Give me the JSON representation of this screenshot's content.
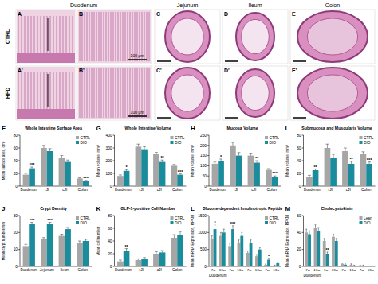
{
  "histology": {
    "columns": [
      "Duodenum",
      "Jejunum",
      "Ileum",
      "Colon"
    ],
    "rows": [
      "CTRL",
      "HFD"
    ],
    "panels": [
      [
        "A",
        "B",
        "C",
        "D",
        "E"
      ],
      [
        "A'",
        "B'",
        "C'",
        "D'",
        "E'"
      ]
    ],
    "scale_bar": "100 µm"
  },
  "chart_data": [
    {
      "type": "bar",
      "panel_label": "F",
      "title": "Whole Intestine Surface Area",
      "y_label": "Mean surface area, cm²",
      "categories": [
        "Duodenum",
        "rJI",
        "cJI",
        "Colon"
      ],
      "series": [
        {
          "name": "CTRL",
          "color": "#a6a6a6",
          "values": [
            18,
            60,
            45,
            12
          ],
          "errors": [
            2,
            4,
            3,
            1
          ]
        },
        {
          "name": "DIO",
          "color": "#1a8c9c",
          "values": [
            28,
            55,
            38,
            8
          ],
          "errors": [
            2,
            4,
            3,
            1
          ]
        }
      ],
      "significance": [
        "***",
        null,
        null,
        "***"
      ],
      "ylim": [
        0,
        80
      ],
      "yticks": [
        0,
        20,
        40,
        60,
        80
      ],
      "legend": "upper right"
    },
    {
      "type": "bar",
      "panel_label": "G",
      "title": "Whole Intestine Volume",
      "y_label": "Mean volume, mm³",
      "categories": [
        "Duodenum",
        "rJI",
        "cJI",
        "Colon"
      ],
      "series": [
        {
          "name": "CTRL",
          "color": "#a6a6a6",
          "values": [
            80,
            310,
            250,
            160
          ],
          "errors": [
            8,
            20,
            15,
            10
          ]
        },
        {
          "name": "DIO",
          "color": "#1a8c9c",
          "values": [
            120,
            290,
            190,
            90
          ],
          "errors": [
            10,
            20,
            15,
            8
          ]
        }
      ],
      "significance": [
        "*",
        null,
        "**",
        "***"
      ],
      "ylim": [
        0,
        400
      ],
      "yticks": [
        0,
        100,
        200,
        300,
        400
      ],
      "legend": "upper right"
    },
    {
      "type": "bar",
      "panel_label": "H",
      "title": "Mucosa Volume",
      "y_label": "Mean volume, mm³",
      "categories": [
        "Duodenum",
        "rJI",
        "cJI",
        "Colon"
      ],
      "series": [
        {
          "name": "CTRL",
          "color": "#a6a6a6",
          "values": [
            110,
            200,
            150,
            80
          ],
          "errors": [
            8,
            15,
            12,
            6
          ]
        },
        {
          "name": "DIO",
          "color": "#1a8c9c",
          "values": [
            125,
            150,
            115,
            45
          ],
          "errors": [
            8,
            15,
            10,
            5
          ]
        }
      ],
      "significance": [
        "*",
        null,
        "**",
        "***"
      ],
      "ylim": [
        0,
        250
      ],
      "yticks": [
        0,
        50,
        100,
        150,
        200,
        250
      ],
      "legend": "upper right"
    },
    {
      "type": "bar",
      "panel_label": "I",
      "title": "Submucosa and Muscularis Volume",
      "y_label": "Mean volume, mm³",
      "categories": [
        "Duodenum",
        "rJI",
        "cJI",
        "Colon"
      ],
      "series": [
        {
          "name": "CTRL",
          "color": "#a6a6a6",
          "values": [
            15,
            60,
            55,
            50
          ],
          "errors": [
            2,
            6,
            5,
            4
          ]
        },
        {
          "name": "DIO",
          "color": "#1a8c9c",
          "values": [
            25,
            45,
            35,
            35
          ],
          "errors": [
            2,
            5,
            4,
            3
          ]
        }
      ],
      "significance": [
        "**",
        null,
        "**",
        "***"
      ],
      "ylim": [
        0,
        80
      ],
      "yticks": [
        0,
        20,
        40,
        60,
        80
      ],
      "legend": "upper right"
    },
    {
      "type": "bar",
      "panel_label": "J",
      "title": "Crypt Density",
      "y_label": "Mean crypt number/mm",
      "categories": [
        "Duodenum",
        "Jejunum",
        "Ileum",
        "Colon"
      ],
      "series": [
        {
          "name": "CTRL",
          "color": "#a6a6a6",
          "values": [
            12,
            16,
            18,
            14
          ],
          "errors": [
            1,
            1,
            1,
            1
          ]
        },
        {
          "name": "DIO",
          "color": "#1a8c9c",
          "values": [
            25,
            25,
            22,
            15
          ],
          "errors": [
            1,
            1,
            1,
            1
          ]
        }
      ],
      "significance": [
        "***",
        "***",
        null,
        null
      ],
      "ylim": [
        0,
        30
      ],
      "yticks": [
        0,
        10,
        20,
        30
      ],
      "legend": "upper right"
    },
    {
      "type": "bar",
      "panel_label": "K",
      "title": "GLP-1-positive Cell Number",
      "y_label": "Mean cell number",
      "categories": [
        "Duodenum",
        "rJI",
        "cJI",
        "Colon"
      ],
      "series": [
        {
          "name": "CTRL",
          "color": "#a6a6a6",
          "values": [
            8,
            10,
            20,
            45
          ],
          "errors": [
            2,
            2,
            3,
            5
          ]
        },
        {
          "name": "DIO",
          "color": "#1a8c9c",
          "values": [
            25,
            12,
            22,
            50
          ],
          "errors": [
            3,
            2,
            3,
            5
          ]
        }
      ],
      "significance": [
        "**",
        null,
        null,
        null
      ],
      "ylim": [
        0,
        80
      ],
      "yticks": [
        0,
        20,
        40,
        60,
        80
      ],
      "legend": "upper right"
    },
    {
      "type": "bar",
      "panel_label": "L",
      "title": "Glucose-dependent Insulinotropic Peptide",
      "y_label": "Mean mRNA Expression, RPKM",
      "categories": [
        "7w",
        "13w",
        "7w",
        "13w",
        "7w",
        "13w",
        "7w",
        "13w"
      ],
      "x_group_label": "Duodenum",
      "series": [
        {
          "name": "CTRL",
          "color": "#a6a6a6",
          "values": [
            800,
            900,
            600,
            700,
            400,
            300,
            50,
            30
          ],
          "errors": [
            100,
            100,
            80,
            80,
            60,
            50,
            20,
            10
          ]
        },
        {
          "name": "DIO",
          "color": "#1a8c9c",
          "values": [
            1100,
            1000,
            1100,
            900,
            700,
            500,
            200,
            100
          ],
          "errors": [
            120,
            100,
            100,
            100,
            80,
            60,
            40,
            20
          ]
        }
      ],
      "significance": [
        "*",
        null,
        "***",
        null,
        null,
        null,
        "*",
        null
      ],
      "ylim": [
        0,
        1500
      ],
      "yticks": [
        0,
        500,
        1000,
        1500
      ],
      "legend": "upper right"
    },
    {
      "type": "bar",
      "panel_label": "M",
      "title": "Cholecystokinin",
      "y_label": "Mean mRNA Expression, RPKM",
      "categories": [
        "7w",
        "13w",
        "7w",
        "13w",
        "7w",
        "13w",
        "7w",
        "13w"
      ],
      "x_group_label": "Duodenum",
      "series": [
        {
          "name": "Lean",
          "color": "#a6a6a6",
          "values": [
            40,
            45,
            30,
            35,
            3,
            2,
            1,
            0
          ],
          "errors": [
            4,
            4,
            3,
            3,
            1,
            1,
            0.5,
            0
          ]
        },
        {
          "name": "DIO",
          "color": "#1a8c9c",
          "values": [
            38,
            42,
            15,
            30,
            2,
            1,
            1,
            0
          ],
          "errors": [
            4,
            4,
            2,
            3,
            1,
            0.5,
            0.5,
            0
          ]
        }
      ],
      "significance": [
        null,
        null,
        "**",
        null,
        null,
        null,
        null,
        null
      ],
      "ylim": [
        0,
        60
      ],
      "yticks": [
        0,
        20,
        40,
        60
      ],
      "legend": "upper right"
    }
  ]
}
